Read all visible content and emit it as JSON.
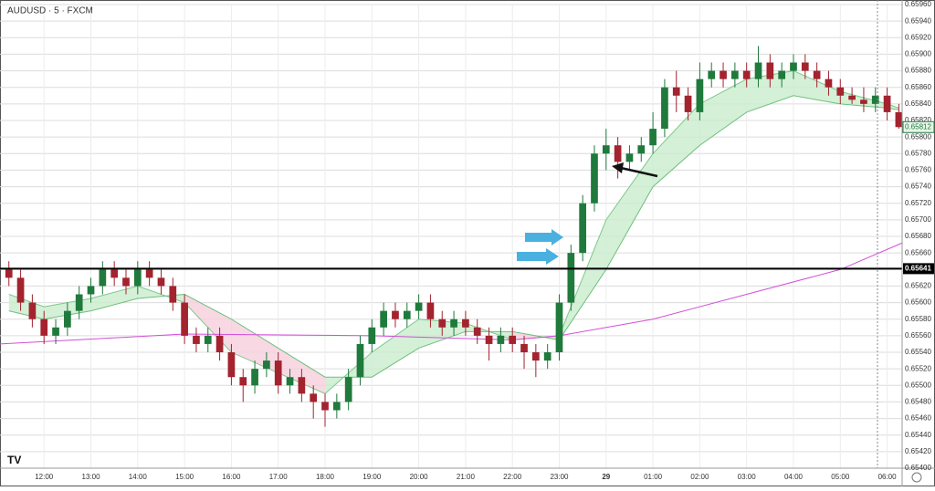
{
  "chart_data": {
    "type": "candlestick",
    "title": "AUDUSD · 5 · FXCM",
    "up_color": "#1f7a3c",
    "down_color": "#a3232e",
    "x": [
      11.25,
      11.5,
      11.75,
      12,
      12.25,
      12.5,
      12.75,
      13,
      13.25,
      13.5,
      13.75,
      14,
      14.25,
      14.5,
      14.75,
      15,
      15.25,
      15.5,
      15.75,
      16,
      16.25,
      16.5,
      16.75,
      17,
      17.25,
      17.5,
      17.75,
      18,
      18.25,
      18.5,
      18.75,
      19,
      19.25,
      19.5,
      19.75,
      20,
      20.25,
      20.5,
      20.75,
      21,
      21.25,
      21.5,
      21.75,
      22,
      22.25,
      22.5,
      22.75,
      23,
      23.25,
      23.5,
      23.75,
      24,
      24.25,
      24.5,
      24.75,
      25,
      25.25,
      25.5,
      25.75,
      26,
      26.25,
      26.5,
      26.75,
      27,
      27.25,
      27.5,
      27.75,
      28,
      28.25,
      28.5,
      28.75,
      29,
      29.25,
      29.5,
      29.75,
      30,
      30.25
    ],
    "candles": [
      [
        0.6564,
        0.6565,
        0.6562,
        0.6563
      ],
      [
        0.6563,
        0.6564,
        0.6559,
        0.656
      ],
      [
        0.656,
        0.6561,
        0.6557,
        0.6558
      ],
      [
        0.6558,
        0.6559,
        0.6555,
        0.6556
      ],
      [
        0.6556,
        0.6558,
        0.6555,
        0.6557
      ],
      [
        0.6557,
        0.656,
        0.6556,
        0.6559
      ],
      [
        0.6559,
        0.6562,
        0.6558,
        0.6561
      ],
      [
        0.6561,
        0.6563,
        0.656,
        0.6562
      ],
      [
        0.6562,
        0.6565,
        0.6561,
        0.6564
      ],
      [
        0.6564,
        0.6565,
        0.6562,
        0.6563
      ],
      [
        0.6563,
        0.6564,
        0.6561,
        0.6562
      ],
      [
        0.6562,
        0.6565,
        0.6561,
        0.6564
      ],
      [
        0.6564,
        0.6565,
        0.6562,
        0.6563
      ],
      [
        0.6563,
        0.6564,
        0.6561,
        0.6562
      ],
      [
        0.6562,
        0.6563,
        0.6559,
        0.656
      ],
      [
        0.656,
        0.6561,
        0.6555,
        0.6556
      ],
      [
        0.6556,
        0.6557,
        0.6554,
        0.6555
      ],
      [
        0.6555,
        0.6557,
        0.6554,
        0.6556
      ],
      [
        0.6556,
        0.6557,
        0.6553,
        0.6554
      ],
      [
        0.6554,
        0.6555,
        0.655,
        0.6551
      ],
      [
        0.6551,
        0.6552,
        0.6548,
        0.655
      ],
      [
        0.655,
        0.6553,
        0.6549,
        0.6552
      ],
      [
        0.6552,
        0.6554,
        0.6551,
        0.6553
      ],
      [
        0.6553,
        0.6554,
        0.6549,
        0.655
      ],
      [
        0.655,
        0.6552,
        0.6549,
        0.6551
      ],
      [
        0.6551,
        0.6552,
        0.6548,
        0.6549
      ],
      [
        0.6549,
        0.655,
        0.6546,
        0.6548
      ],
      [
        0.6548,
        0.6549,
        0.6545,
        0.6547
      ],
      [
        0.6547,
        0.6549,
        0.6546,
        0.6548
      ],
      [
        0.6548,
        0.6552,
        0.6547,
        0.6551
      ],
      [
        0.6551,
        0.6556,
        0.655,
        0.6555
      ],
      [
        0.6555,
        0.6558,
        0.6554,
        0.6557
      ],
      [
        0.6557,
        0.656,
        0.6556,
        0.6559
      ],
      [
        0.6559,
        0.656,
        0.6557,
        0.6558
      ],
      [
        0.6558,
        0.656,
        0.6557,
        0.6559
      ],
      [
        0.6559,
        0.6561,
        0.6558,
        0.656
      ],
      [
        0.656,
        0.6561,
        0.6557,
        0.6558
      ],
      [
        0.6558,
        0.6559,
        0.6556,
        0.6557
      ],
      [
        0.6557,
        0.6559,
        0.6556,
        0.6558
      ],
      [
        0.6558,
        0.6559,
        0.6556,
        0.6557
      ],
      [
        0.6557,
        0.6558,
        0.6555,
        0.6556
      ],
      [
        0.6556,
        0.6557,
        0.6553,
        0.6555
      ],
      [
        0.6555,
        0.6557,
        0.6554,
        0.6556
      ],
      [
        0.6556,
        0.6557,
        0.6554,
        0.6555
      ],
      [
        0.6555,
        0.6556,
        0.6552,
        0.6554
      ],
      [
        0.6554,
        0.6555,
        0.6551,
        0.6553
      ],
      [
        0.6553,
        0.6555,
        0.6552,
        0.6554
      ],
      [
        0.6554,
        0.6561,
        0.6553,
        0.656
      ],
      [
        0.656,
        0.6567,
        0.6559,
        0.6566
      ],
      [
        0.6566,
        0.6573,
        0.6565,
        0.6572
      ],
      [
        0.6572,
        0.6579,
        0.6571,
        0.6578
      ],
      [
        0.6578,
        0.6581,
        0.6576,
        0.6579
      ],
      [
        0.6579,
        0.658,
        0.6575,
        0.6577
      ],
      [
        0.6577,
        0.6579,
        0.6576,
        0.6578
      ],
      [
        0.6578,
        0.658,
        0.6577,
        0.6579
      ],
      [
        0.6579,
        0.6583,
        0.6578,
        0.6581
      ],
      [
        0.6581,
        0.6587,
        0.658,
        0.6586
      ],
      [
        0.6586,
        0.6588,
        0.6583,
        0.6585
      ],
      [
        0.6585,
        0.6586,
        0.6582,
        0.6583
      ],
      [
        0.6583,
        0.6589,
        0.6582,
        0.6587
      ],
      [
        0.6587,
        0.6589,
        0.6586,
        0.6588
      ],
      [
        0.6588,
        0.6589,
        0.6586,
        0.6587
      ],
      [
        0.6587,
        0.6589,
        0.6586,
        0.6588
      ],
      [
        0.6588,
        0.6589,
        0.6586,
        0.6587
      ],
      [
        0.6587,
        0.6591,
        0.6586,
        0.6589
      ],
      [
        0.6589,
        0.659,
        0.6586,
        0.6587
      ],
      [
        0.6587,
        0.6589,
        0.6586,
        0.6588
      ],
      [
        0.6588,
        0.659,
        0.6587,
        0.6589
      ],
      [
        0.6589,
        0.659,
        0.6587,
        0.6588
      ],
      [
        0.6588,
        0.6589,
        0.6586,
        0.6587
      ],
      [
        0.6587,
        0.6588,
        0.6585,
        0.6586
      ],
      [
        0.6586,
        0.6587,
        0.6584,
        0.6585
      ],
      [
        0.6585,
        0.6586,
        0.6584,
        0.65845
      ],
      [
        0.65845,
        0.6586,
        0.6583,
        0.6584
      ],
      [
        0.6584,
        0.6586,
        0.6583,
        0.6585
      ],
      [
        0.6585,
        0.6586,
        0.6582,
        0.6583
      ],
      [
        0.6583,
        0.6584,
        0.6581,
        0.65812
      ]
    ],
    "series": [
      {
        "type": "line",
        "color": "#7cc98a",
        "x": [
          11.25,
          12,
          13,
          14,
          15,
          16,
          17,
          18,
          19,
          20,
          21,
          22,
          23,
          24,
          25,
          26,
          27,
          28,
          29,
          30,
          30.25
        ],
        "values": [
          0.6561,
          0.65595,
          0.65605,
          0.6562,
          0.656,
          0.6554,
          0.65515,
          0.6549,
          0.6554,
          0.6558,
          0.65575,
          0.65555,
          0.6556,
          0.657,
          0.6578,
          0.6584,
          0.6587,
          0.6588,
          0.65855,
          0.6584,
          0.65835
        ]
      },
      {
        "type": "line",
        "color": "#6fbf7d",
        "x": [
          11.25,
          12,
          13,
          14,
          15,
          16,
          17,
          18,
          19,
          20,
          21,
          22,
          23,
          24,
          25,
          26,
          27,
          28,
          29,
          30,
          30.25
        ],
        "values": [
          0.6559,
          0.6558,
          0.6559,
          0.65605,
          0.6561,
          0.6558,
          0.65545,
          0.6551,
          0.6551,
          0.65545,
          0.65565,
          0.65565,
          0.65555,
          0.6564,
          0.6574,
          0.6579,
          0.6583,
          0.6585,
          0.6584,
          0.65835,
          0.65833
        ]
      },
      {
        "type": "line",
        "color": "#d24fd8",
        "x": [
          11.06,
          15,
          19,
          22,
          23,
          25,
          27,
          29,
          30.32
        ],
        "values": [
          0.6555,
          0.65562,
          0.6556,
          0.65555,
          0.6556,
          0.6558,
          0.6561,
          0.6564,
          0.65672
        ]
      }
    ],
    "band_up_color": "#c9eccd",
    "band_down_color": "#f6cfdc",
    "level": 0.65641,
    "last_price": 0.65812,
    "xlim": [
      11.06,
      30.32
    ],
    "ylim": [
      0.654,
      0.6596
    ],
    "xticks": [
      {
        "value": 12,
        "label": "12:00"
      },
      {
        "value": 13,
        "label": "13:00"
      },
      {
        "value": 14,
        "label": "14:00"
      },
      {
        "value": 15,
        "label": "15:00"
      },
      {
        "value": 16,
        "label": "16:00"
      },
      {
        "value": 17,
        "label": "17:00"
      },
      {
        "value": 18,
        "label": "18:00"
      },
      {
        "value": 19,
        "label": "19:00"
      },
      {
        "value": 20,
        "label": "20:00"
      },
      {
        "value": 21,
        "label": "21:00"
      },
      {
        "value": 22,
        "label": "22:00"
      },
      {
        "value": 23,
        "label": "23:00"
      },
      {
        "value": 24,
        "label": "29"
      },
      {
        "value": 25,
        "label": "01:00"
      },
      {
        "value": 26,
        "label": "02:00"
      },
      {
        "value": 27,
        "label": "03:00"
      },
      {
        "value": 28,
        "label": "04:00"
      },
      {
        "value": 29,
        "label": "05:00"
      },
      {
        "value": 30,
        "label": "06:00"
      }
    ],
    "yticks": [
      {
        "value": 0.654,
        "label": "0.65400"
      },
      {
        "value": 0.6542,
        "label": "0.65420"
      },
      {
        "value": 0.6544,
        "label": "0.65440"
      },
      {
        "value": 0.6546,
        "label": "0.65460"
      },
      {
        "value": 0.6548,
        "label": "0.65480"
      },
      {
        "value": 0.655,
        "label": "0.65500"
      },
      {
        "value": 0.6552,
        "label": "0.65520"
      },
      {
        "value": 0.6554,
        "label": "0.65540"
      },
      {
        "value": 0.6556,
        "label": "0.65560"
      },
      {
        "value": 0.6558,
        "label": "0.65580"
      },
      {
        "value": 0.656,
        "label": "0.65600"
      },
      {
        "value": 0.6562,
        "label": "0.65620"
      },
      {
        "value": 0.6564,
        "label": "0.65640"
      },
      {
        "value": 0.6566,
        "label": "0.65660"
      },
      {
        "value": 0.6568,
        "label": "0.65680"
      },
      {
        "value": 0.657,
        "label": "0.65700"
      },
      {
        "value": 0.6572,
        "label": "0.65720"
      },
      {
        "value": 0.6574,
        "label": "0.65740"
      },
      {
        "value": 0.6576,
        "label": "0.65760"
      },
      {
        "value": 0.6578,
        "label": "0.65780"
      },
      {
        "value": 0.658,
        "label": "0.65800"
      },
      {
        "value": 0.6582,
        "label": "0.65820"
      },
      {
        "value": 0.6584,
        "label": "0.65840"
      },
      {
        "value": 0.6586,
        "label": "0.65860"
      },
      {
        "value": 0.6588,
        "label": "0.65880"
      },
      {
        "value": 0.659,
        "label": "0.65900"
      },
      {
        "value": 0.6592,
        "label": "0.65920"
      },
      {
        "value": 0.6594,
        "label": "0.65940"
      },
      {
        "value": 0.6596,
        "label": "0.65960"
      }
    ],
    "grid": true
  }
}
